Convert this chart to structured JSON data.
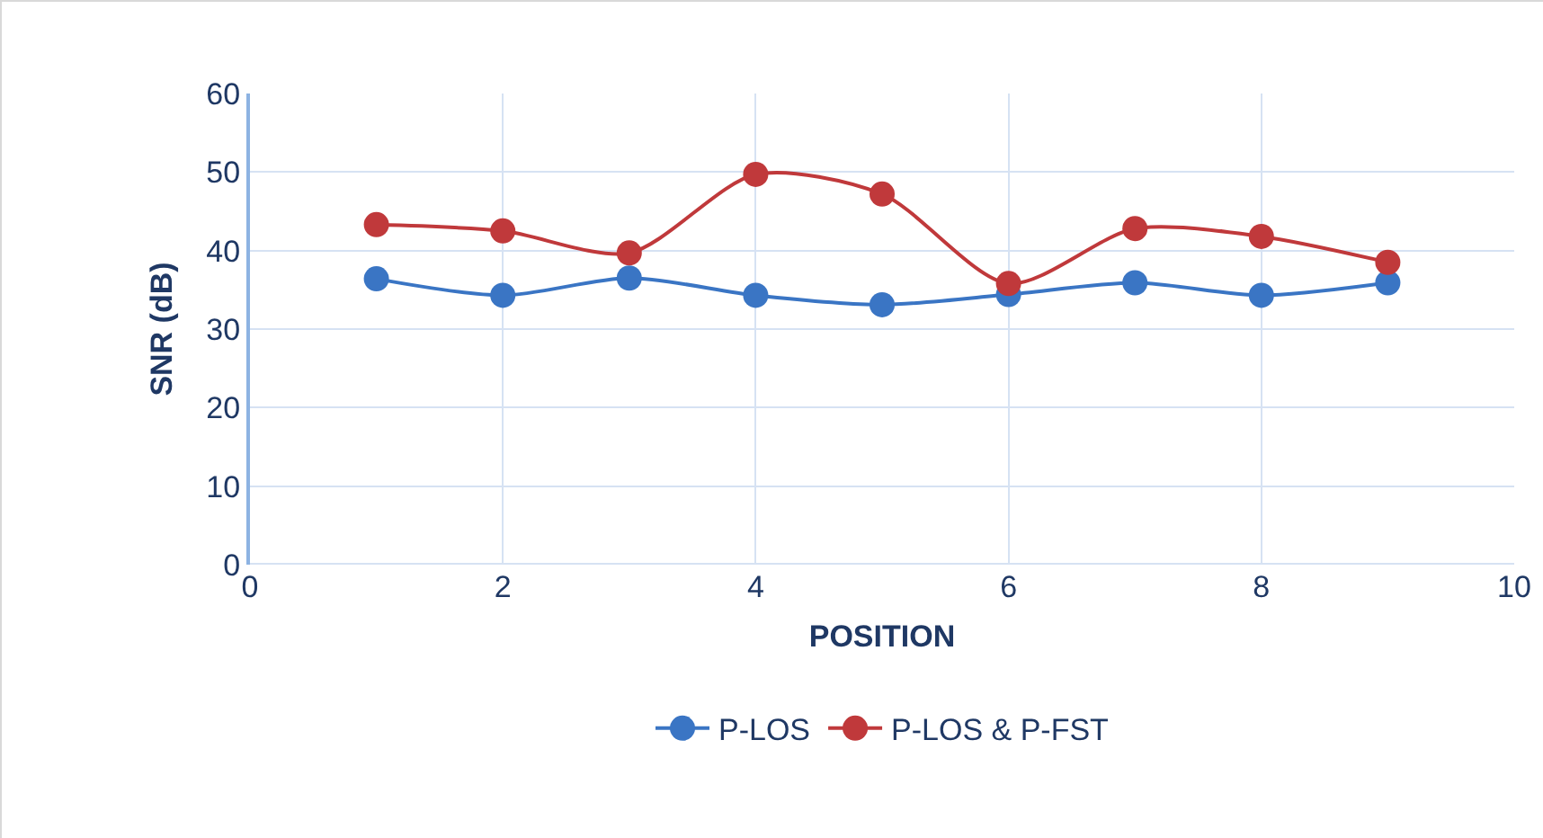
{
  "chart_data": {
    "type": "line",
    "xlabel": "POSITION",
    "ylabel": "SNR (dB)",
    "x": [
      1,
      2,
      3,
      4,
      5,
      6,
      7,
      8,
      9
    ],
    "series": [
      {
        "name": "P-LOS",
        "color": "#3a75c4",
        "values": [
          36.4,
          34.3,
          36.5,
          34.3,
          33.1,
          34.4,
          35.9,
          34.3,
          35.9
        ]
      },
      {
        "name": "P-LOS & P-FST",
        "color": "#c0393b",
        "values": [
          43.3,
          42.5,
          39.7,
          49.7,
          47.2,
          35.8,
          42.8,
          41.8,
          38.5
        ]
      }
    ],
    "xlim": [
      0,
      10
    ],
    "xticks": [
      0,
      2,
      4,
      6,
      8,
      10
    ],
    "ylim": [
      0,
      60
    ],
    "yticks": [
      0,
      10,
      20,
      30,
      40,
      50,
      60
    ],
    "grid": true,
    "legend": "bottom",
    "marker": "circle",
    "line_style": "solid"
  }
}
